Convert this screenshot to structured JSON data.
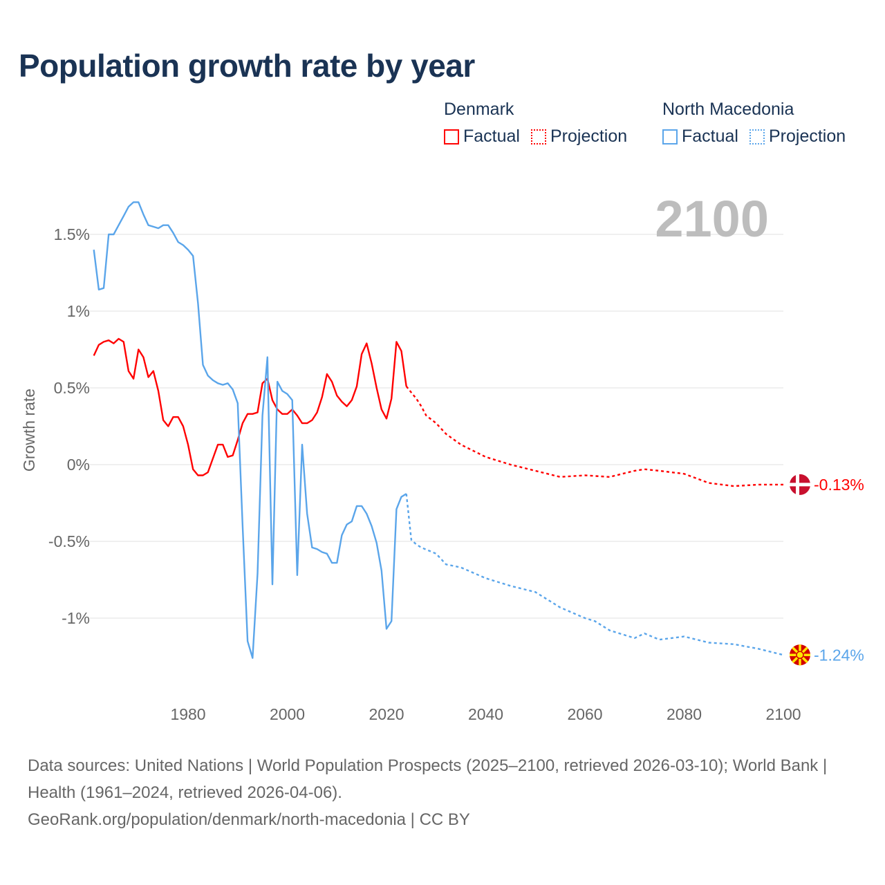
{
  "title": "Population growth rate by year",
  "legend": {
    "groups": [
      {
        "name": "Denmark",
        "factual": "Factual",
        "projection": "Projection",
        "color": "#ff0000"
      },
      {
        "name": "North Macedonia",
        "factual": "Factual",
        "projection": "Projection",
        "color": "#5aa5ea"
      }
    ]
  },
  "footer": {
    "sources": "Data sources: United Nations | World Population Prospects (2025–2100, retrieved 2026-03-10); World Bank | Health (1961–2024, retrieved 2026-04-06).",
    "credit": "GeoRank.org/population/denmark/north-macedonia | CC BY"
  },
  "chart_data": {
    "type": "line",
    "title": "Population growth rate by year",
    "ylabel": "Growth rate",
    "xlabel": "",
    "current_year_label": "2100",
    "xlim": [
      1961,
      2100
    ],
    "ylim": [
      -1.5,
      1.8
    ],
    "x_ticks": [
      "1980",
      "2000",
      "2020",
      "2040",
      "2060",
      "2080",
      "2100"
    ],
    "y_ticks": [
      {
        "v": 1.5,
        "label": "1.5%"
      },
      {
        "v": 1,
        "label": "1%"
      },
      {
        "v": 0.5,
        "label": "0.5%"
      },
      {
        "v": 0,
        "label": "0%"
      },
      {
        "v": -0.5,
        "label": "-0.5%"
      },
      {
        "v": -1,
        "label": "-1%"
      }
    ],
    "grid": true,
    "series": [
      {
        "name": "Denmark",
        "color": "#ff0000",
        "end_label": "-0.13%",
        "factual_start": 1961,
        "factual": [
          0.71,
          0.78,
          0.8,
          0.81,
          0.79,
          0.82,
          0.8,
          0.61,
          0.56,
          0.75,
          0.7,
          0.57,
          0.61,
          0.48,
          0.29,
          0.25,
          0.31,
          0.31,
          0.25,
          0.13,
          -0.03,
          -0.07,
          -0.07,
          -0.05,
          0.04,
          0.13,
          0.13,
          0.05,
          0.06,
          0.16,
          0.27,
          0.33,
          0.33,
          0.34,
          0.53,
          0.56,
          0.42,
          0.36,
          0.33,
          0.33,
          0.36,
          0.32,
          0.27,
          0.27,
          0.29,
          0.34,
          0.44,
          0.59,
          0.54,
          0.45,
          0.41,
          0.38,
          0.42,
          0.51,
          0.72,
          0.79,
          0.66,
          0.5,
          0.36,
          0.3,
          0.43,
          0.8,
          0.74,
          0.51
        ],
        "projection": [
          [
            2024,
            0.51
          ],
          [
            2025,
            0.47
          ],
          [
            2026,
            0.43
          ],
          [
            2027,
            0.38
          ],
          [
            2028,
            0.32
          ],
          [
            2030,
            0.27
          ],
          [
            2032,
            0.2
          ],
          [
            2035,
            0.13
          ],
          [
            2040,
            0.05
          ],
          [
            2045,
            0.0
          ],
          [
            2050,
            -0.04
          ],
          [
            2055,
            -0.08
          ],
          [
            2060,
            -0.07
          ],
          [
            2065,
            -0.08
          ],
          [
            2070,
            -0.04
          ],
          [
            2072,
            -0.03
          ],
          [
            2075,
            -0.04
          ],
          [
            2080,
            -0.06
          ],
          [
            2085,
            -0.12
          ],
          [
            2090,
            -0.14
          ],
          [
            2095,
            -0.13
          ],
          [
            2100,
            -0.13
          ]
        ]
      },
      {
        "name": "North Macedonia",
        "color": "#5aa5ea",
        "end_label": "-1.24%",
        "factual_start": 1961,
        "factual": [
          1.4,
          1.14,
          1.15,
          1.5,
          1.5,
          1.56,
          1.62,
          1.68,
          1.71,
          1.71,
          1.63,
          1.56,
          1.55,
          1.54,
          1.56,
          1.56,
          1.51,
          1.45,
          1.43,
          1.4,
          1.36,
          1.05,
          0.65,
          0.58,
          0.55,
          0.53,
          0.52,
          0.53,
          0.49,
          0.4,
          -0.4,
          -1.15,
          -1.26,
          -0.71,
          0.32,
          0.7,
          -0.78,
          0.54,
          0.48,
          0.46,
          0.42,
          -0.72,
          0.13,
          -0.32,
          -0.54,
          -0.55,
          -0.57,
          -0.58,
          -0.64,
          -0.64,
          -0.46,
          -0.39,
          -0.37,
          -0.27,
          -0.27,
          -0.32,
          -0.4,
          -0.51,
          -0.69,
          -1.07,
          -1.02,
          -0.29,
          -0.21,
          -0.19
        ],
        "projection": [
          [
            2024,
            -0.19
          ],
          [
            2025,
            -0.49
          ],
          [
            2026,
            -0.52
          ],
          [
            2027,
            -0.54
          ],
          [
            2030,
            -0.58
          ],
          [
            2032,
            -0.65
          ],
          [
            2035,
            -0.67
          ],
          [
            2040,
            -0.74
          ],
          [
            2045,
            -0.79
          ],
          [
            2050,
            -0.83
          ],
          [
            2055,
            -0.93
          ],
          [
            2060,
            -1.0
          ],
          [
            2062,
            -1.02
          ],
          [
            2065,
            -1.08
          ],
          [
            2070,
            -1.13
          ],
          [
            2072,
            -1.1
          ],
          [
            2075,
            -1.14
          ],
          [
            2080,
            -1.12
          ],
          [
            2085,
            -1.16
          ],
          [
            2090,
            -1.17
          ],
          [
            2095,
            -1.2
          ],
          [
            2100,
            -1.24
          ]
        ]
      }
    ]
  }
}
